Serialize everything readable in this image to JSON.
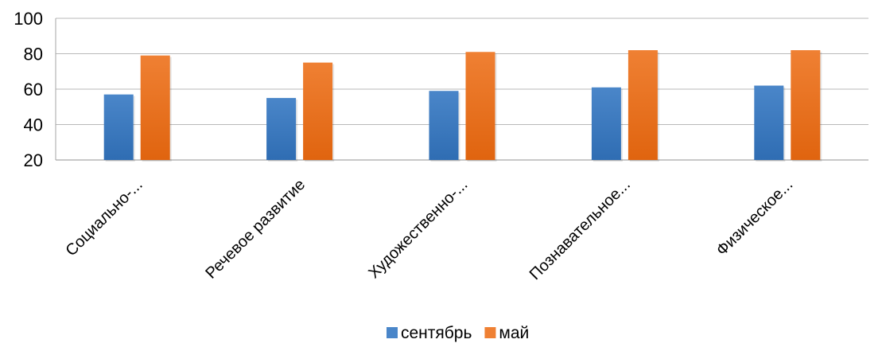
{
  "chart_data": {
    "type": "bar",
    "categories": [
      "Социально-...",
      "Речевое развитие",
      "Художественно-...",
      "Познавательное...",
      "Физическое..."
    ],
    "series": [
      {
        "name": "сентябрь",
        "values": [
          57,
          55,
          59,
          61,
          62
        ]
      },
      {
        "name": "май",
        "values": [
          79,
          75,
          81,
          82,
          82
        ]
      }
    ],
    "ylim": [
      20,
      100
    ],
    "yticks": [
      20,
      40,
      60,
      80,
      100
    ],
    "grid": true,
    "legend_position": "bottom",
    "title": "",
    "xlabel": "",
    "ylabel": ""
  },
  "colors": {
    "series": [
      "#4a86c9",
      "#ef8033"
    ],
    "series_dark": [
      "#2f6db3",
      "#e0640f"
    ],
    "gridline": "#b9b9b9",
    "axis": "#a6a6a6"
  }
}
